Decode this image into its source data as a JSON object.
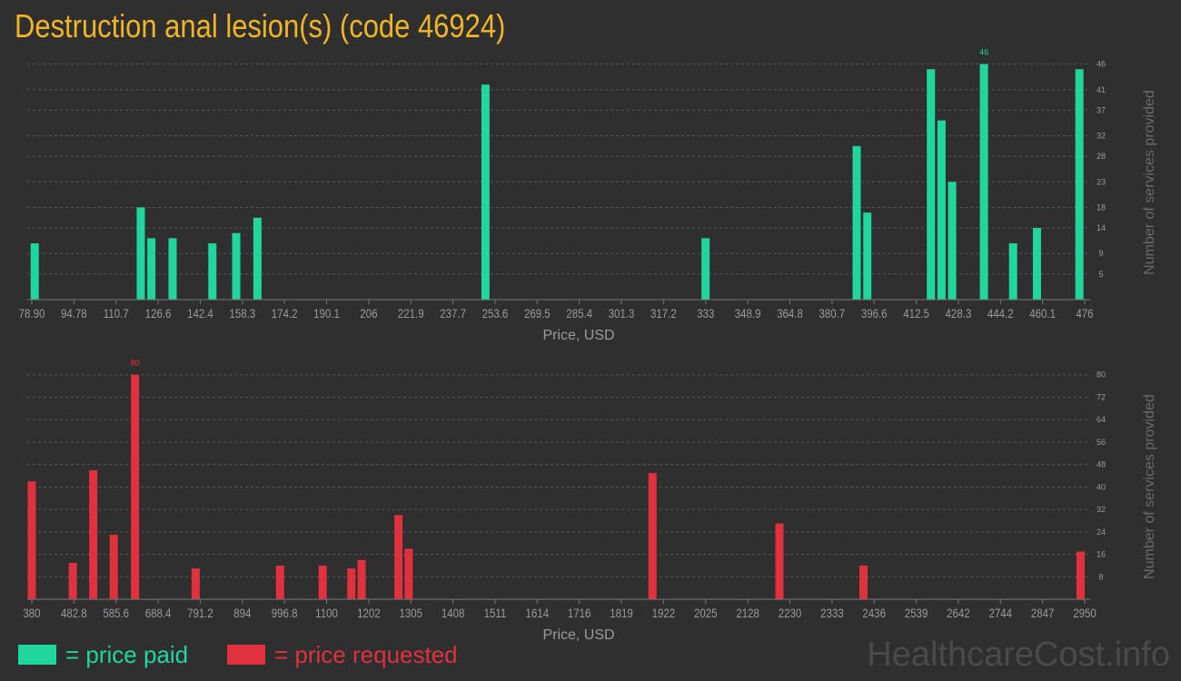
{
  "title": "Destruction anal lesion(s) (code 46924)",
  "watermark": "HealthcareCost.info",
  "colors": {
    "background": "#2f2f2f",
    "paid": "#20d69c",
    "requested": "#e0313e",
    "title": "#f0b429",
    "axis_text": "#9a9a9a",
    "grid": "#555555"
  },
  "legend": [
    {
      "label": "= price paid",
      "color": "#20d69c"
    },
    {
      "label": "= price requested",
      "color": "#e0313e"
    }
  ],
  "chart_data": [
    {
      "type": "bar",
      "name": "price paid",
      "xlabel": "Price, USD",
      "ylabel": "Number of services provided",
      "xlim": [
        78.9,
        476
      ],
      "ylim": [
        0,
        50
      ],
      "x_ticks": [
        "78.90",
        "94.78",
        "110.7",
        "126.6",
        "142.4",
        "158.3",
        "174.2",
        "190.1",
        "206",
        "221.9",
        "237.7",
        "253.6",
        "269.5",
        "285.4",
        "301.3",
        "317.2",
        "333",
        "348.9",
        "364.8",
        "380.7",
        "396.6",
        "412.5",
        "428.3",
        "444.2",
        "460.1",
        "476"
      ],
      "y_ticks": [
        5,
        9,
        14,
        18,
        23,
        28,
        32,
        37,
        41,
        46
      ],
      "max_label": "46",
      "grid": true,
      "points": [
        {
          "x": 80,
          "y": 11
        },
        {
          "x": 120,
          "y": 18
        },
        {
          "x": 124,
          "y": 12
        },
        {
          "x": 132,
          "y": 12
        },
        {
          "x": 147,
          "y": 11
        },
        {
          "x": 156,
          "y": 13
        },
        {
          "x": 164,
          "y": 16
        },
        {
          "x": 250,
          "y": 42
        },
        {
          "x": 333,
          "y": 12
        },
        {
          "x": 390,
          "y": 30
        },
        {
          "x": 394,
          "y": 17
        },
        {
          "x": 418,
          "y": 45
        },
        {
          "x": 422,
          "y": 35
        },
        {
          "x": 426,
          "y": 23
        },
        {
          "x": 438,
          "y": 46
        },
        {
          "x": 449,
          "y": 11
        },
        {
          "x": 458,
          "y": 14
        },
        {
          "x": 474,
          "y": 45
        }
      ]
    },
    {
      "type": "bar",
      "name": "price requested",
      "xlabel": "Price, USD",
      "ylabel": "Number of services provided",
      "xlim": [
        380,
        2950
      ],
      "ylim": [
        0,
        88
      ],
      "x_ticks": [
        "380",
        "482.8",
        "585.6",
        "688.4",
        "791.2",
        "894",
        "996.8",
        "1100",
        "1202",
        "1305",
        "1408",
        "1511",
        "1614",
        "1716",
        "1819",
        "1922",
        "2025",
        "2128",
        "2230",
        "2333",
        "2436",
        "2539",
        "2642",
        "2744",
        "2847",
        "2950"
      ],
      "y_ticks": [
        8,
        16,
        24,
        32,
        40,
        48,
        56,
        64,
        72,
        80
      ],
      "max_label": "80",
      "grid": true,
      "points": [
        {
          "x": 380,
          "y": 42
        },
        {
          "x": 480,
          "y": 13
        },
        {
          "x": 530,
          "y": 46
        },
        {
          "x": 580,
          "y": 23
        },
        {
          "x": 632,
          "y": 80
        },
        {
          "x": 780,
          "y": 11
        },
        {
          "x": 986,
          "y": 12
        },
        {
          "x": 1090,
          "y": 12
        },
        {
          "x": 1160,
          "y": 11
        },
        {
          "x": 1185,
          "y": 14
        },
        {
          "x": 1275,
          "y": 30
        },
        {
          "x": 1300,
          "y": 18
        },
        {
          "x": 1895,
          "y": 45
        },
        {
          "x": 2205,
          "y": 27
        },
        {
          "x": 2410,
          "y": 12
        },
        {
          "x": 2940,
          "y": 17
        }
      ]
    }
  ]
}
